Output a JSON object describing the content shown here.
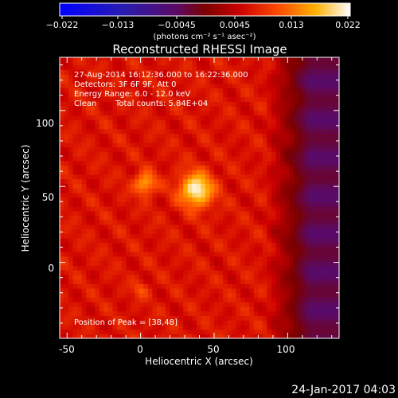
{
  "chart_data": {
    "type": "heatmap",
    "title": "Reconstructed RHESSI Image",
    "xlabel": "Heliocentric X (arcsec)",
    "ylabel": "Heliocentric Y (arcsec)",
    "xlim": [
      -55,
      135
    ],
    "ylim": [
      -50,
      135
    ],
    "xticks": [
      -50,
      0,
      50,
      100
    ],
    "yticks": [
      0,
      50,
      100
    ],
    "colorbar": {
      "label": "(photons cm⁻² s⁻¹ asec⁻²)",
      "min": -0.022,
      "max": 0.022,
      "tick_labels": [
        "−0.022",
        "−0.013",
        "−0.0045",
        "0.0045",
        "0.013",
        "0.022"
      ]
    },
    "annotations": {
      "time_range": "27-Aug-2014 16:12:36.000 to 16:22:36.000",
      "detectors": "Detectors: 3F 6F 9F, Att 0",
      "energy_range": "Energy Range: 6.0 - 12.0 keV",
      "clean": "Clean",
      "total_counts": "Total counts: 5.84E+04",
      "peak_position": "Position of Peak = [38,48]"
    },
    "sources": [
      {
        "x": 38,
        "y": 48,
        "peak": 0.022
      },
      {
        "x": 3,
        "y": 52,
        "peak": 0.017
      },
      {
        "x": 0,
        "y": -18,
        "peak": 0.011
      }
    ],
    "colors": {
      "background": "#000000",
      "axes": "#ffffff"
    }
  },
  "timestamp": "24-Jan-2017 04:03"
}
